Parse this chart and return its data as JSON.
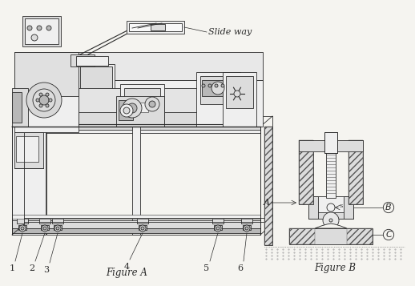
{
  "bg": "#f5f4f0",
  "lc": "#2a2a2a",
  "lc2": "#555555",
  "fig_a_label": "Figure A",
  "fig_b_label": "Figure B",
  "slide_way_label": "Slide way",
  "labels_A": [
    "1",
    "2",
    "3",
    "4",
    "5",
    "6"
  ],
  "labels_B": [
    "A",
    "B",
    "C"
  ],
  "font_size": 8.5,
  "hatch_fill": "#c8c8c8",
  "light_fill": "#efefef",
  "mid_fill": "#dcdcdc",
  "dark_fill": "#b8b8b8"
}
